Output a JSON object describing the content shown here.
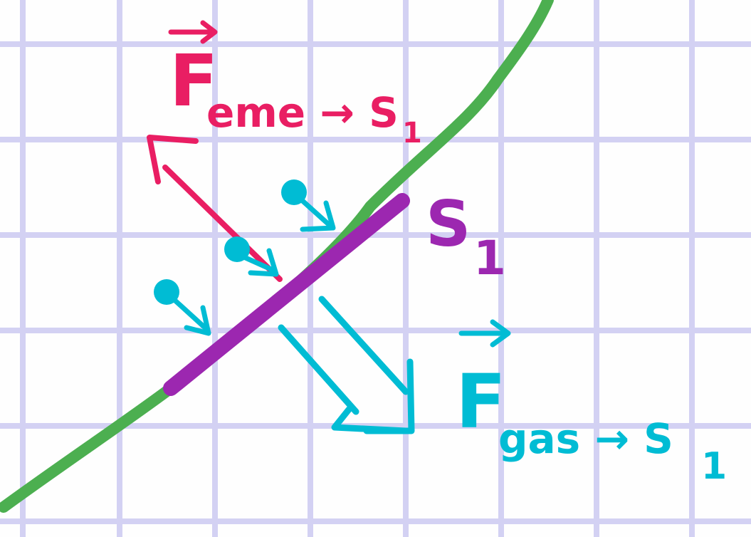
{
  "colors": {
    "grid": "#d3d1f3",
    "background": "#fefefe",
    "curve": "#4caf50",
    "surface": "#9c27b0",
    "fem_arrow": "#e91e63",
    "gas": "#00bcd4"
  },
  "labels": {
    "fem": {
      "base": "F",
      "subscript": "eme → S",
      "index": "1"
    },
    "surface": {
      "base": "S",
      "index": "1"
    },
    "gas": {
      "base": "F",
      "subscript": "gas → S",
      "index": "1"
    }
  }
}
